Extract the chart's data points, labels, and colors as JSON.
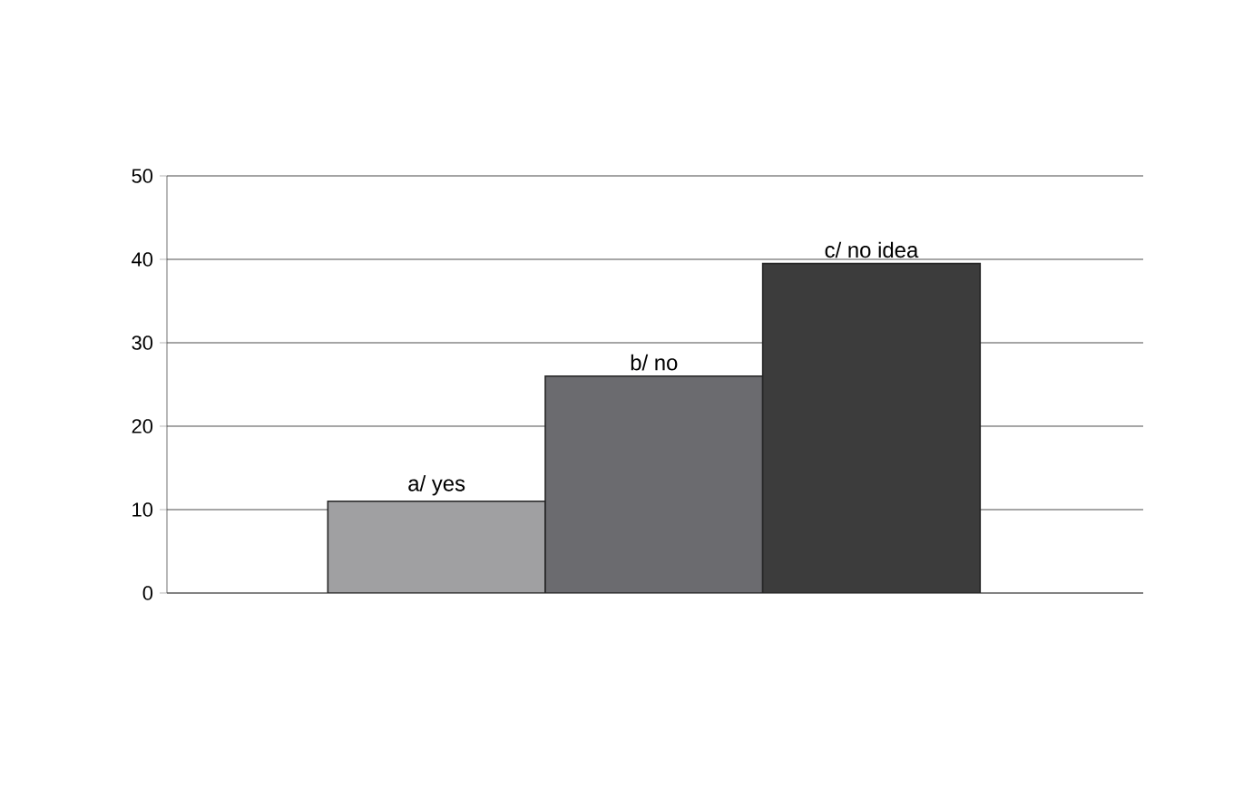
{
  "chart_data": {
    "type": "bar",
    "categories": [
      "a/ yes",
      "b/ no",
      "c/ no idea"
    ],
    "values": [
      11,
      26,
      39.5
    ],
    "colors": [
      "#a0a0a2",
      "#6b6b6f",
      "#3c3c3c"
    ],
    "ylim": [
      0,
      50
    ],
    "yticks": [
      0,
      10,
      20,
      30,
      40,
      50
    ],
    "grid": "y"
  }
}
